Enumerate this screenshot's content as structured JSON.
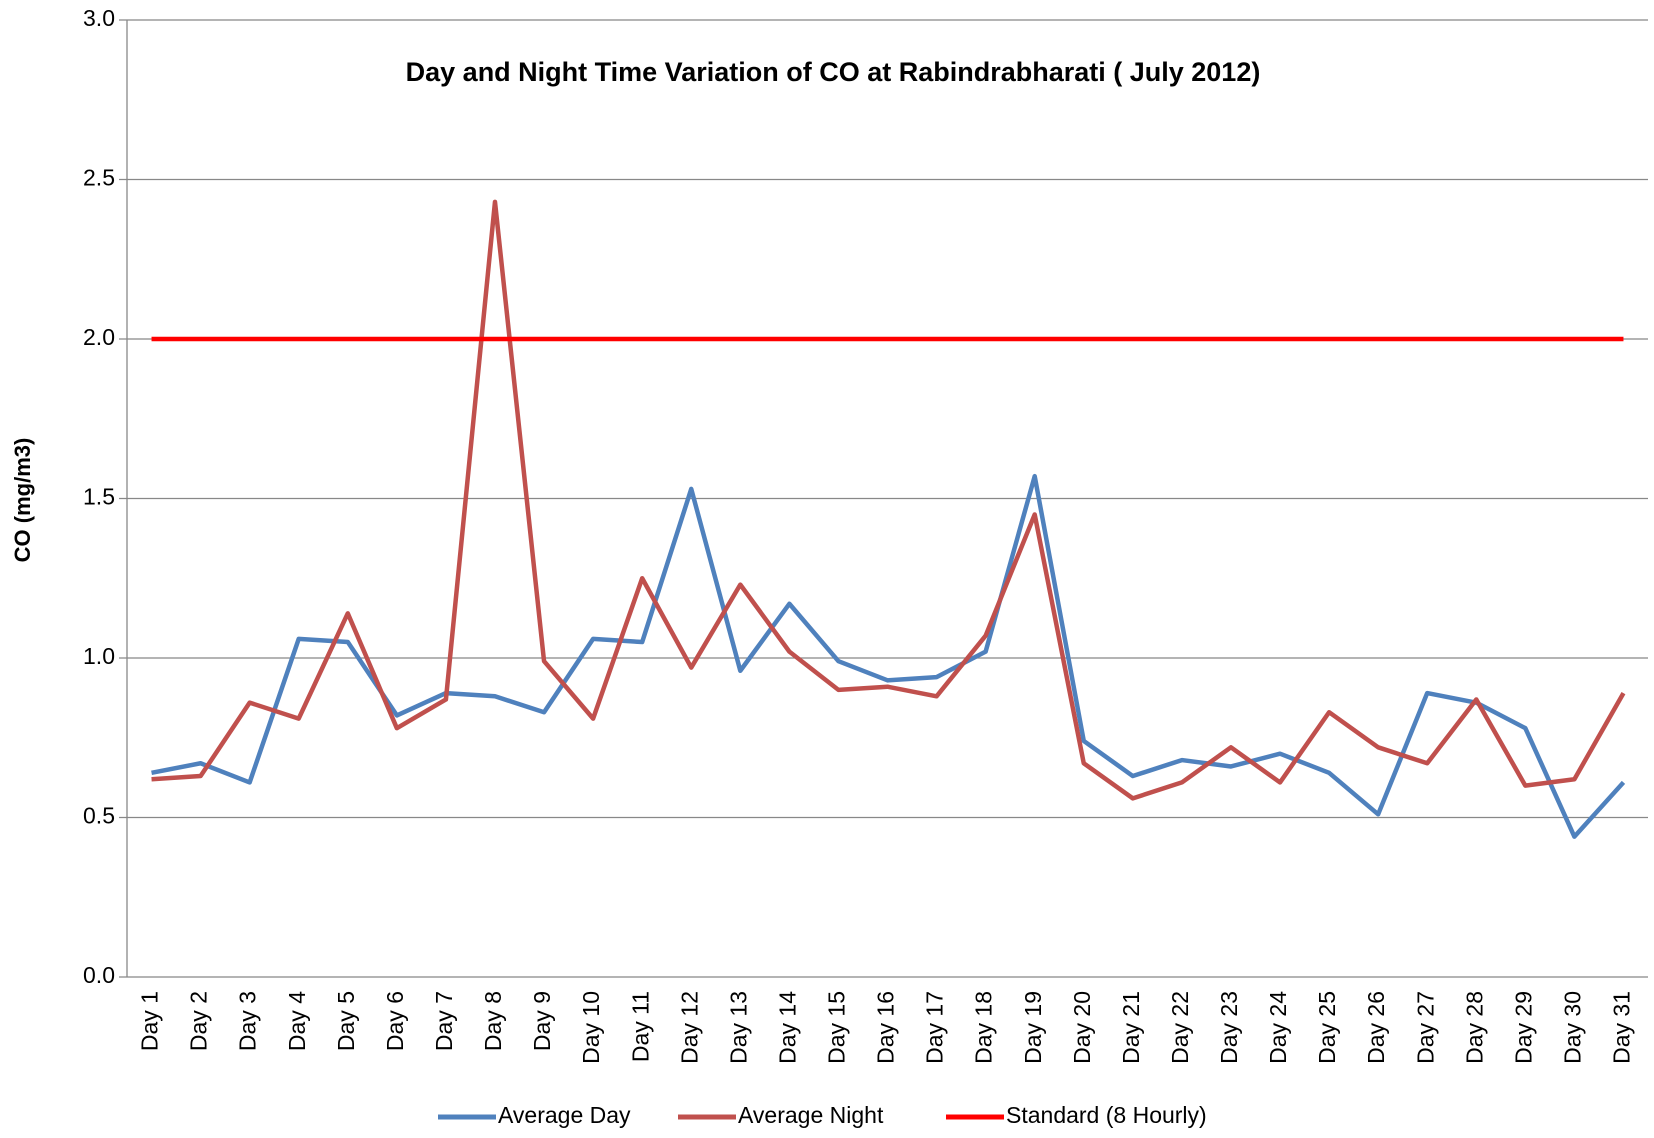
{
  "chart_data": {
    "type": "line",
    "title": "Day and Night Time Variation of CO at Rabindrabharati ( July 2012)",
    "y_label": "CO (mg/m3)",
    "categories": [
      "Day 1",
      "Day 2",
      "Day 3",
      "Day 4",
      "Day 5",
      "Day 6",
      "Day 7",
      "Day 8",
      "Day 9",
      "Day 10",
      "Day 11",
      "Day 12",
      "Day 13",
      "Day 14",
      "Day 15",
      "Day 16",
      "Day 17",
      "Day 18",
      "Day 19",
      "Day 20",
      "Day 21",
      "Day 22",
      "Day 23",
      "Day 24",
      "Day 25",
      "Day 26",
      "Day 27",
      "Day 28",
      "Day 29",
      "Day 30",
      "Day 31"
    ],
    "series": [
      {
        "name": "Average Day",
        "color": "#4f81bd",
        "values": [
          0.64,
          0.67,
          0.61,
          1.06,
          1.05,
          0.82,
          0.89,
          0.88,
          0.83,
          1.06,
          1.05,
          1.53,
          0.96,
          1.17,
          0.99,
          0.93,
          0.94,
          1.02,
          1.57,
          0.74,
          0.63,
          0.68,
          0.66,
          0.7,
          0.64,
          0.51,
          0.89,
          0.86,
          0.78,
          0.44,
          0.61
        ]
      },
      {
        "name": "Average Night",
        "color": "#c0504d",
        "values": [
          0.62,
          0.63,
          0.86,
          0.81,
          1.14,
          0.78,
          0.87,
          2.43,
          0.99,
          0.81,
          1.25,
          0.97,
          1.23,
          1.02,
          0.9,
          0.91,
          0.88,
          1.07,
          1.45,
          0.67,
          0.56,
          0.61,
          0.72,
          0.61,
          0.83,
          0.72,
          0.67,
          0.87,
          0.6,
          0.62,
          0.89
        ]
      },
      {
        "name": "Standard (8 Hourly)",
        "color": "#ff0000",
        "values": [
          2,
          2,
          2,
          2,
          2,
          2,
          2,
          2,
          2,
          2,
          2,
          2,
          2,
          2,
          2,
          2,
          2,
          2,
          2,
          2,
          2,
          2,
          2,
          2,
          2,
          2,
          2,
          2,
          2,
          2,
          2
        ]
      }
    ],
    "ylim": [
      0,
      3
    ],
    "yticks": [
      {
        "value": 0,
        "label": "0.0"
      },
      {
        "value": 0.5,
        "label": "0.5"
      },
      {
        "value": 1,
        "label": "1.0"
      },
      {
        "value": 1.5,
        "label": "1.5"
      },
      {
        "value": 2,
        "label": "2.0"
      },
      {
        "value": 2.5,
        "label": "2.5"
      },
      {
        "value": 3,
        "label": "3.0"
      }
    ],
    "grid": true,
    "legend": "bottom"
  }
}
